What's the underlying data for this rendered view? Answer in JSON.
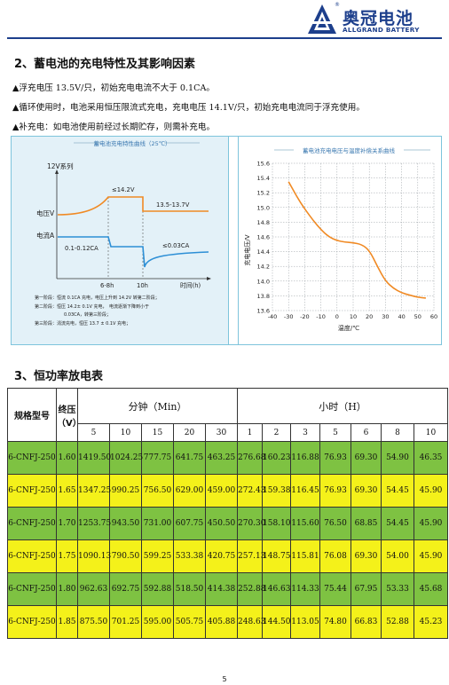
{
  "header": {
    "logo_cn": "奥冠电池",
    "logo_en": "ALLGRAND BATTERY",
    "logo_reg": "®",
    "brand_color": "#1d3f8c"
  },
  "section2": {
    "title": "2、蓄电池的充电特性及其影响因素",
    "bullets": [
      "▲浮充电压 13.5V/只，初始充电电流不大于 0.1CA。",
      "▲循环使用时，电池采用恒压限流式充电，充电电压 14.1V/只，初始充电电流同于浮充使用。",
      "▲补充电：如电池使用前经过长期贮存，则需补充电。"
    ]
  },
  "chart_data": [
    {
      "type": "line",
      "title": "蓄电池充电特性曲线（25℃）",
      "ylabel": "12V系列",
      "xlabel": "时间(h)",
      "series_labels": [
        "电压V",
        "电流A"
      ],
      "annotations": [
        "≤14.2V",
        "13.5-13.7V",
        "0.1-0.12CA",
        "≤0.03CA"
      ],
      "x_ticks": [
        "6-8h",
        "10h"
      ],
      "notes": [
        "第一阶段：恒流 0.1CA 充电，电压上升到 14.2V 转第二阶段；",
        "第二阶段：恒压 14.2± 0.1V 充电，　电流逐渐下降到小于",
        "0.03CA，转第三阶段；",
        "第三阶段：涓流充电，恒压 13.7 ± 0.1V 充电；"
      ]
    },
    {
      "type": "line",
      "title": "蓄电池充电电压与温度补偿关系曲线",
      "xlabel": "温度/℃",
      "ylabel": "充电电压/V",
      "xlim": [
        -40,
        60
      ],
      "ylim": [
        13.6,
        15.6
      ],
      "x_ticks": [
        "-40",
        "-30",
        "-20",
        "-10",
        "0",
        "10",
        "20",
        "30",
        "40",
        "50",
        "60"
      ],
      "y_ticks": [
        "15.6",
        "15.4",
        "15.2",
        "15.0",
        "14.8",
        "14.6",
        "14.4",
        "14.2",
        "14.0",
        "13.8",
        "13.6"
      ],
      "series": [
        {
          "x": [
            -30,
            -25,
            -20,
            -15,
            -10,
            -5,
            0,
            5,
            10,
            15,
            20,
            25,
            30,
            35,
            40,
            45,
            50,
            55
          ],
          "values": [
            15.35,
            15.15,
            14.98,
            14.83,
            14.7,
            14.6,
            14.55,
            14.53,
            14.52,
            14.5,
            14.42,
            14.2,
            14.0,
            13.9,
            13.84,
            13.81,
            13.78,
            13.77
          ]
        }
      ],
      "grid": true,
      "line_color": "#f08a24"
    }
  ],
  "section3": {
    "title": "3、恒功率放电表",
    "table": {
      "model_header": "规格型号",
      "endv_header": "终压（V）",
      "group_min": "分钟（Min）",
      "group_hour": "小时（H）",
      "minute_cols": [
        "5",
        "10",
        "15",
        "20",
        "30"
      ],
      "hour_cols": [
        "1",
        "2",
        "3",
        "5",
        "6",
        "8",
        "10"
      ],
      "rows": [
        [
          "6-CNFJ-250",
          "1.60",
          "1419.50",
          "1024.25",
          "777.75",
          "641.75",
          "463.25",
          "276.68",
          "160.23",
          "116.88",
          "76.93",
          "69.30",
          "54.90",
          "46.35"
        ],
        [
          "6-CNFJ-250",
          "1.65",
          "1347.25",
          "990.25",
          "756.50",
          "629.00",
          "459.00",
          "272.43",
          "159.38",
          "116.45",
          "76.93",
          "69.30",
          "54.45",
          "45.90"
        ],
        [
          "6-CNFJ-250",
          "1.70",
          "1253.75",
          "943.50",
          "731.00",
          "607.75",
          "450.50",
          "270.30",
          "158.10",
          "115.60",
          "76.50",
          "68.85",
          "54.45",
          "45.90"
        ],
        [
          "6-CNFJ-250",
          "1.75",
          "1090.13",
          "790.50",
          "599.25",
          "533.38",
          "420.75",
          "257.13",
          "148.75",
          "115.81",
          "76.08",
          "69.30",
          "54.00",
          "45.90"
        ],
        [
          "6-CNFJ-250",
          "1.80",
          "962.63",
          "692.75",
          "592.88",
          "518.50",
          "414.38",
          "252.88",
          "146.63",
          "114.33",
          "75.44",
          "67.95",
          "53.33",
          "45.68"
        ],
        [
          "6-CNFJ-250",
          "1.85",
          "875.50",
          "701.25",
          "595.00",
          "505.75",
          "405.88",
          "248.63",
          "144.50",
          "113.05",
          "74.80",
          "66.83",
          "52.88",
          "45.23"
        ]
      ],
      "row_colors": [
        "#7ec242",
        "#f4f11a"
      ]
    }
  },
  "footer": {
    "page_number": "5"
  }
}
